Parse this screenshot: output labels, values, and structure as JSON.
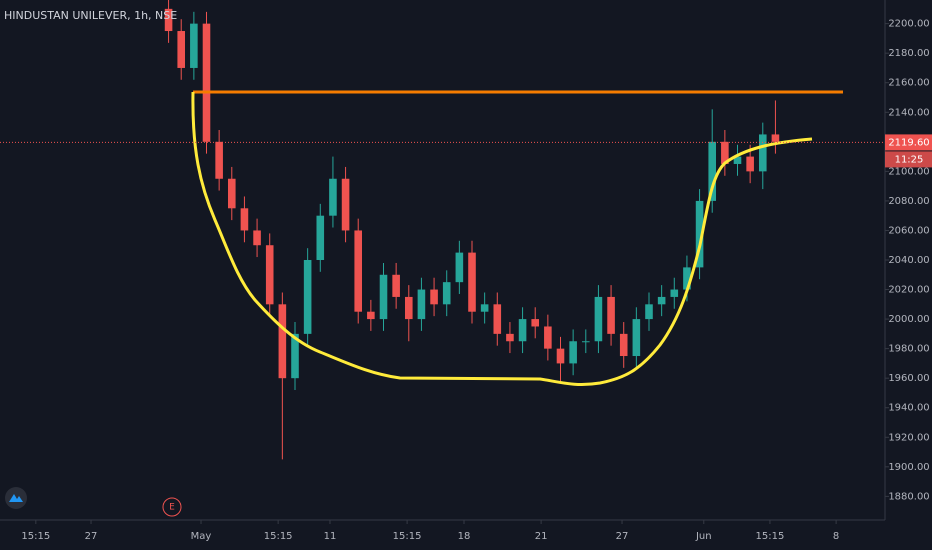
{
  "chart_data": {
    "type": "candlestick",
    "title": "HINDUSTAN UNILEVER, 1h, NSE",
    "up_color": "#26a69a",
    "down_color": "#ef5350",
    "x": [
      40,
      43,
      46,
      49,
      52,
      55,
      58,
      61,
      64,
      67,
      70,
      73,
      76,
      79,
      82,
      85,
      88,
      91,
      94,
      97,
      100,
      103,
      106,
      109,
      112,
      115,
      118,
      121,
      124,
      127,
      130,
      133,
      136,
      139,
      142,
      145,
      148,
      151,
      154,
      157,
      160,
      163,
      166,
      169,
      172,
      175,
      178,
      181,
      184
    ],
    "open": [
      2210,
      2195,
      2170,
      2200,
      2120,
      2095,
      2075,
      2060,
      2050,
      2010,
      1960,
      1990,
      2040,
      2070,
      2095,
      2060,
      2005,
      2000,
      2030,
      2015,
      2000,
      2020,
      2010,
      2025,
      2045,
      2005,
      2010,
      1990,
      1985,
      2000,
      1995,
      1980,
      1970,
      1985,
      1985,
      2015,
      1990,
      1975,
      2000,
      2010,
      2015,
      2020,
      2035,
      2080,
      2120,
      2105,
      2110,
      2100,
      2125
    ],
    "high": [
      2218,
      2203,
      2208,
      2208,
      2128,
      2103,
      2083,
      2068,
      2058,
      2018,
      1998,
      2048,
      2078,
      2110,
      2103,
      2068,
      2013,
      2038,
      2038,
      2023,
      2028,
      2028,
      2033,
      2053,
      2053,
      2018,
      2018,
      1998,
      2008,
      2008,
      2003,
      1988,
      1993,
      1993,
      2023,
      2023,
      1998,
      2008,
      2018,
      2023,
      2028,
      2043,
      2088,
      2142,
      2128,
      2118,
      2118,
      2133,
      2148
    ],
    "low": [
      2187,
      2162,
      2162,
      2112,
      2087,
      2067,
      2052,
      2042,
      2002,
      1905,
      1952,
      1982,
      2032,
      2062,
      2052,
      1997,
      1992,
      1992,
      2007,
      1985,
      1992,
      2002,
      2002,
      2017,
      1997,
      1997,
      1982,
      1977,
      1977,
      1987,
      1972,
      1958,
      1962,
      1977,
      1977,
      1982,
      1967,
      1967,
      1992,
      2002,
      2007,
      2012,
      2027,
      2072,
      2097,
      2097,
      2092,
      2088,
      2112
    ],
    "close": [
      2195,
      2170,
      2200,
      2120,
      2095,
      2075,
      2060,
      2050,
      2010,
      1960,
      1990,
      2040,
      2070,
      2095,
      2060,
      2005,
      2000,
      2030,
      2015,
      2000,
      2020,
      2010,
      2025,
      2045,
      2005,
      2010,
      1990,
      1985,
      2000,
      1995,
      1980,
      1970,
      1985,
      1985,
      2015,
      1990,
      1975,
      2000,
      2010,
      2015,
      2020,
      2035,
      2080,
      2120,
      2105,
      2110,
      2100,
      2125,
      2120
    ],
    "xlim": [
      0,
      210
    ],
    "xticks": [
      {
        "value": 8.5,
        "label": "15:15"
      },
      {
        "value": 21.6,
        "label": "27"
      },
      {
        "value": 47.7,
        "label": "May"
      },
      {
        "value": 66,
        "label": "15:15"
      },
      {
        "value": 78.3,
        "label": "11"
      },
      {
        "value": 96.6,
        "label": "15:15"
      },
      {
        "value": 110.1,
        "label": "18"
      },
      {
        "value": 128.4,
        "label": "21"
      },
      {
        "value": 147.6,
        "label": "27"
      },
      {
        "value": 167,
        "label": "Jun"
      },
      {
        "value": 182.7,
        "label": "15:15"
      },
      {
        "value": 198.4,
        "label": "8"
      }
    ],
    "ylim": [
      1864,
      2216
    ],
    "yticks": [
      {
        "value": 1880,
        "label": "1880.00"
      },
      {
        "value": 1900,
        "label": "1900.00"
      },
      {
        "value": 1920,
        "label": "1920.00"
      },
      {
        "value": 1940,
        "label": "1940.00"
      },
      {
        "value": 1960,
        "label": "1960.00"
      },
      {
        "value": 1980,
        "label": "1980.00"
      },
      {
        "value": 2000,
        "label": "2000.00"
      },
      {
        "value": 2020,
        "label": "2020.00"
      },
      {
        "value": 2040,
        "label": "2040.00"
      },
      {
        "value": 2060,
        "label": "2060.00"
      },
      {
        "value": 2080,
        "label": "2080.00"
      },
      {
        "value": 2100,
        "label": "2100.00"
      },
      {
        "value": 2120,
        "label": "2120.00"
      },
      {
        "value": 2140,
        "label": "2140.00"
      },
      {
        "value": 2160,
        "label": "2160.00"
      },
      {
        "value": 2180,
        "label": "2180.00"
      },
      {
        "value": 2200,
        "label": "2200.00"
      }
    ],
    "last_price": {
      "value": 2119.6,
      "label": "2119.60"
    },
    "countdown": "11:25",
    "event_marker": "E"
  }
}
